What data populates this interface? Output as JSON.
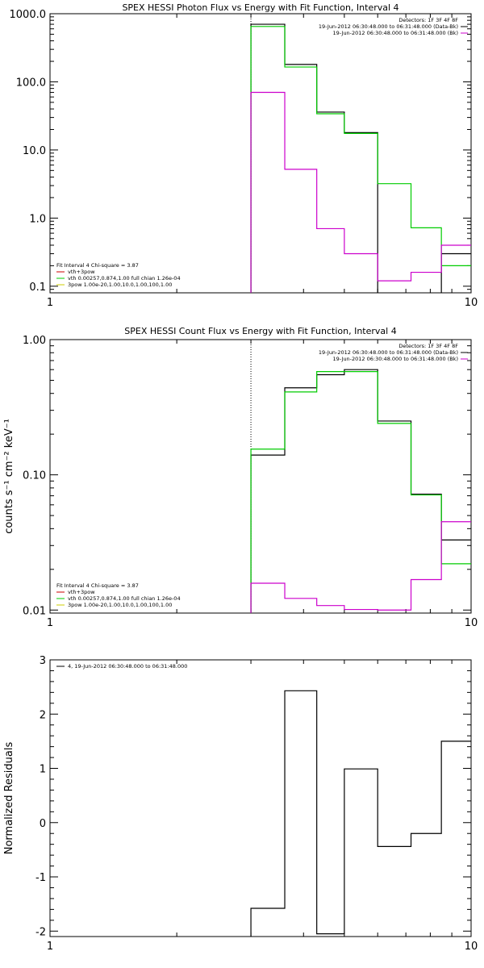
{
  "figure": {
    "colors": {
      "data": "#000000",
      "model": "#00cc00",
      "background": "#cc00cc",
      "thermal": "#cc0000",
      "powerlaw": "#cccc00",
      "frame": "#000000"
    }
  },
  "chart_data": [
    {
      "type": "line",
      "title": "SPEX HESSI Photon Flux vs Energy with Fit Function, Interval 4",
      "xscale": "log",
      "yscale": "log",
      "xlim": [
        1,
        10
      ],
      "ylim": [
        0.08,
        1000
      ],
      "xticks": [
        1,
        10
      ],
      "xtick_labels": [
        "1",
        "10"
      ],
      "yticks": [
        0.1,
        1,
        10,
        100,
        1000
      ],
      "ytick_labels": [
        "0.1",
        "1.0",
        "10.0",
        "100.0",
        "1000.0"
      ],
      "ylabel": "",
      "vline_x": 3.0,
      "legend_top": [
        {
          "text": "Detectors: 1F 3F 4F 8F",
          "color": "#000000",
          "line": false
        },
        {
          "text": "19-Jun-2012 06:30:48.000 to 06:31:48.000 (Data-Bk)",
          "color": "#000000",
          "line": true
        },
        {
          "text": "19-Jun-2012 06:30:48.000 to 06:31:48.000 (Bk)",
          "color": "#cc00cc",
          "line": true
        }
      ],
      "legend_bottom": [
        {
          "text": "Fit Interval 4   Chi-square = 3.87",
          "color": "#000000",
          "line": false
        },
        {
          "text": "vth+3pow",
          "color": "#cc0000",
          "line": true
        },
        {
          "text": "vth 0.00257,0.874,1.00   full chian 1.26e-04",
          "color": "#00cc00",
          "line": true
        },
        {
          "text": "3pow 1.00e-20,1.00,10.0,1.00,100,1.00",
          "color": "#cccc00",
          "line": true
        }
      ],
      "series": [
        {
          "name": "Data-Bk",
          "color": "#000000",
          "edges": [
            3.0,
            3.61,
            4.3,
            5.0,
            6.0,
            7.2,
            8.5,
            10.0
          ],
          "values": [
            700,
            180,
            36,
            18,
            0,
            0,
            0.3
          ]
        },
        {
          "name": "Model",
          "color": "#00cc00",
          "edges": [
            3.0,
            3.61,
            4.3,
            5.0,
            6.0,
            7.2,
            8.5,
            10.0
          ],
          "values": [
            650,
            165,
            34,
            17.5,
            3.2,
            0.72,
            0.2
          ]
        },
        {
          "name": "Bk",
          "color": "#cc00cc",
          "edges": [
            3.0,
            3.61,
            4.3,
            5.0,
            6.0,
            7.2,
            8.5,
            10.0
          ],
          "values": [
            70,
            5.2,
            0.7,
            0.3,
            0.12,
            0.16,
            0.4
          ]
        }
      ]
    },
    {
      "type": "line",
      "title": "SPEX HESSI Count Flux vs Energy with Fit Function, Interval 4",
      "xscale": "log",
      "yscale": "log",
      "xlim": [
        1,
        10
      ],
      "ylim": [
        0.0095,
        1.0
      ],
      "xticks": [
        1,
        10
      ],
      "xtick_labels": [
        "1",
        "10"
      ],
      "yticks": [
        0.01,
        0.1,
        1.0
      ],
      "ytick_labels": [
        "0.01",
        "0.10",
        "1.00"
      ],
      "ylabel": "counts s⁻¹ cm⁻² keV⁻¹",
      "vline_x": 3.0,
      "legend_top": [
        {
          "text": "Detectors: 1F 3F 4F 8F",
          "color": "#000000",
          "line": false
        },
        {
          "text": "19-Jun-2012 06:30:48.000 to 06:31:48.000 (Data-Bk)",
          "color": "#000000",
          "line": true
        },
        {
          "text": "19-Jun-2012 06:30:48.000 to 06:31:48.000 (Bk)",
          "color": "#cc00cc",
          "line": true
        }
      ],
      "legend_bottom": [
        {
          "text": "Fit Interval 4   Chi-square = 3.87",
          "color": "#000000",
          "line": false
        },
        {
          "text": "vth+3pow",
          "color": "#cc0000",
          "line": true
        },
        {
          "text": "vth 0.00257,0.874,1.00   full chian 1.26e-04",
          "color": "#00cc00",
          "line": true
        },
        {
          "text": "3pow 1.00e-20,1.00,10.0,1.00,100,1.00",
          "color": "#cccc00",
          "line": true
        }
      ],
      "series": [
        {
          "name": "Data-Bk",
          "color": "#000000",
          "edges": [
            3.0,
            3.61,
            4.3,
            5.0,
            6.0,
            7.2,
            8.5,
            10.0
          ],
          "values": [
            0.14,
            0.44,
            0.55,
            0.6,
            0.25,
            0.072,
            0.033
          ]
        },
        {
          "name": "Model",
          "color": "#00cc00",
          "edges": [
            3.0,
            3.61,
            4.3,
            5.0,
            6.0,
            7.2,
            8.5,
            10.0
          ],
          "values": [
            0.155,
            0.41,
            0.58,
            0.58,
            0.24,
            0.071,
            0.022
          ]
        },
        {
          "name": "Bk",
          "color": "#cc00cc",
          "edges": [
            3.0,
            3.61,
            4.3,
            5.0,
            6.0,
            7.2,
            8.5,
            10.0
          ],
          "values": [
            0.0158,
            0.0122,
            0.0108,
            0.0101,
            0.01,
            0.0168,
            0.045
          ]
        }
      ]
    },
    {
      "type": "line",
      "title": "",
      "xscale": "log",
      "yscale": "linear",
      "xlim": [
        1,
        10
      ],
      "ylim": [
        -2.1,
        3.0
      ],
      "xticks": [
        1,
        10
      ],
      "xtick_labels": [
        "1",
        "10"
      ],
      "yticks": [
        -2,
        -1,
        0,
        1,
        2,
        3
      ],
      "ytick_labels": [
        "-2",
        "-1",
        "0",
        "1",
        "2",
        "3"
      ],
      "ylabel": "Normalized Residuals",
      "legend_top": [
        {
          "text": "4, 19-Jun-2012 06:30:48.000 to 06:31:48.000",
          "color": "#000000",
          "line": true
        }
      ],
      "series": [
        {
          "name": "Residuals",
          "color": "#000000",
          "edges": [
            3.0,
            3.61,
            4.3,
            5.0,
            6.0,
            7.2,
            8.5,
            10.0
          ],
          "values": [
            -1.58,
            2.43,
            -2.05,
            0.99,
            -0.44,
            -0.2,
            1.5
          ]
        }
      ]
    }
  ]
}
